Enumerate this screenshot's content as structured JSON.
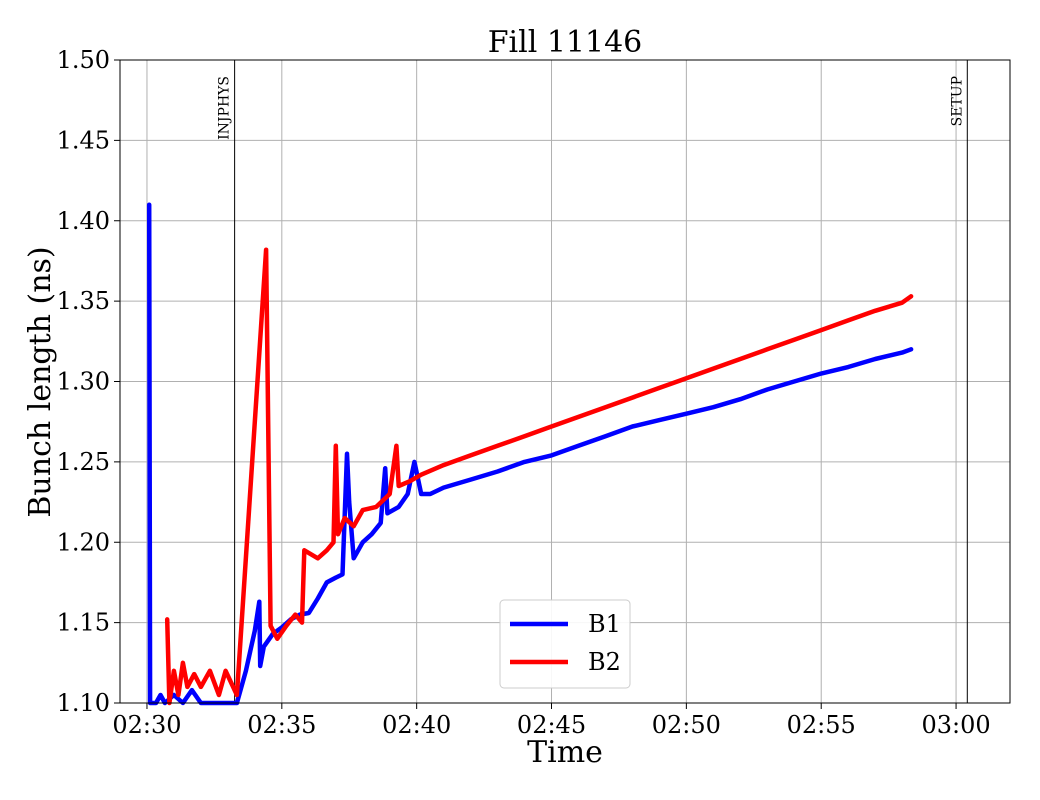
{
  "chart_data": {
    "type": "line",
    "title": "Fill 11146",
    "xlabel": "Time",
    "ylabel": "Bunch length (ns)",
    "x_unit": "time (HH:MM)",
    "xlim": [
      "02:29",
      "03:02"
    ],
    "ylim": [
      1.1,
      1.5
    ],
    "x_ticks": [
      "02:30",
      "02:35",
      "02:40",
      "02:45",
      "02:50",
      "02:55",
      "03:00"
    ],
    "y_ticks": [
      "1.10",
      "1.15",
      "1.20",
      "1.25",
      "1.30",
      "1.35",
      "1.40",
      "1.45",
      "1.50"
    ],
    "grid": true,
    "legend_position": "bottom-center",
    "markers": [
      {
        "label": "INJPHYS",
        "x": "02:33:15"
      },
      {
        "label": "SETUP",
        "x": "03:00:25"
      }
    ],
    "series": [
      {
        "name": "B1",
        "color": "#0000ff",
        "points": [
          [
            "02:30:05",
            1.41
          ],
          [
            "02:30:07",
            1.1
          ],
          [
            "02:30:20",
            1.1
          ],
          [
            "02:30:30",
            1.105
          ],
          [
            "02:30:40",
            1.1
          ],
          [
            "02:31:00",
            1.105
          ],
          [
            "02:31:20",
            1.1
          ],
          [
            "02:31:40",
            1.108
          ],
          [
            "02:32:00",
            1.1
          ],
          [
            "02:33:20",
            1.1
          ],
          [
            "02:33:40",
            1.12
          ],
          [
            "02:34:00",
            1.145
          ],
          [
            "02:34:10",
            1.163
          ],
          [
            "02:34:12",
            1.123
          ],
          [
            "02:34:20",
            1.135
          ],
          [
            "02:34:40",
            1.143
          ],
          [
            "02:35:00",
            1.147
          ],
          [
            "02:35:20",
            1.152
          ],
          [
            "02:35:40",
            1.155
          ],
          [
            "02:36:00",
            1.156
          ],
          [
            "02:36:20",
            1.165
          ],
          [
            "02:36:40",
            1.175
          ],
          [
            "02:37:00",
            1.178
          ],
          [
            "02:37:15",
            1.18
          ],
          [
            "02:37:25",
            1.255
          ],
          [
            "02:37:30",
            1.225
          ],
          [
            "02:37:40",
            1.19
          ],
          [
            "02:38:00",
            1.2
          ],
          [
            "02:38:20",
            1.205
          ],
          [
            "02:38:40",
            1.212
          ],
          [
            "02:38:50",
            1.246
          ],
          [
            "02:38:55",
            1.218
          ],
          [
            "02:39:20",
            1.222
          ],
          [
            "02:39:40",
            1.23
          ],
          [
            "02:39:55",
            1.25
          ],
          [
            "02:40:10",
            1.23
          ],
          [
            "02:40:30",
            1.23
          ],
          [
            "02:41:00",
            1.234
          ],
          [
            "02:42:00",
            1.239
          ],
          [
            "02:43:00",
            1.244
          ],
          [
            "02:44:00",
            1.25
          ],
          [
            "02:45:00",
            1.254
          ],
          [
            "02:46:00",
            1.26
          ],
          [
            "02:47:00",
            1.266
          ],
          [
            "02:48:00",
            1.272
          ],
          [
            "02:49:00",
            1.276
          ],
          [
            "02:50:00",
            1.28
          ],
          [
            "02:51:00",
            1.284
          ],
          [
            "02:52:00",
            1.289
          ],
          [
            "02:53:00",
            1.295
          ],
          [
            "02:54:00",
            1.3
          ],
          [
            "02:55:00",
            1.305
          ],
          [
            "02:56:00",
            1.309
          ],
          [
            "02:57:00",
            1.314
          ],
          [
            "02:58:00",
            1.318
          ],
          [
            "02:58:20",
            1.32
          ]
        ]
      },
      {
        "name": "B2",
        "color": "#ff0000",
        "points": [
          [
            "02:30:45",
            1.152
          ],
          [
            "02:30:50",
            1.1
          ],
          [
            "02:31:00",
            1.12
          ],
          [
            "02:31:10",
            1.105
          ],
          [
            "02:31:20",
            1.125
          ],
          [
            "02:31:30",
            1.11
          ],
          [
            "02:31:45",
            1.118
          ],
          [
            "02:32:00",
            1.11
          ],
          [
            "02:32:20",
            1.12
          ],
          [
            "02:32:40",
            1.105
          ],
          [
            "02:32:55",
            1.12
          ],
          [
            "02:33:20",
            1.105
          ],
          [
            "02:34:25",
            1.382
          ],
          [
            "02:34:35",
            1.148
          ],
          [
            "02:34:50",
            1.14
          ],
          [
            "02:35:10",
            1.148
          ],
          [
            "02:35:30",
            1.155
          ],
          [
            "02:35:45",
            1.15
          ],
          [
            "02:35:50",
            1.195
          ],
          [
            "02:36:20",
            1.19
          ],
          [
            "02:36:40",
            1.195
          ],
          [
            "02:36:55",
            1.2
          ],
          [
            "02:37:00",
            1.26
          ],
          [
            "02:37:05",
            1.205
          ],
          [
            "02:37:20",
            1.215
          ],
          [
            "02:37:40",
            1.21
          ],
          [
            "02:38:00",
            1.22
          ],
          [
            "02:38:30",
            1.222
          ],
          [
            "02:39:00",
            1.23
          ],
          [
            "02:39:15",
            1.26
          ],
          [
            "02:39:20",
            1.235
          ],
          [
            "02:39:45",
            1.238
          ],
          [
            "02:40:10",
            1.242
          ],
          [
            "02:41:00",
            1.248
          ],
          [
            "02:42:00",
            1.254
          ],
          [
            "02:43:00",
            1.26
          ],
          [
            "02:44:00",
            1.266
          ],
          [
            "02:45:00",
            1.272
          ],
          [
            "02:46:00",
            1.278
          ],
          [
            "02:47:00",
            1.284
          ],
          [
            "02:48:00",
            1.29
          ],
          [
            "02:49:00",
            1.296
          ],
          [
            "02:50:00",
            1.302
          ],
          [
            "02:51:00",
            1.308
          ],
          [
            "02:52:00",
            1.314
          ],
          [
            "02:53:00",
            1.32
          ],
          [
            "02:54:00",
            1.326
          ],
          [
            "02:55:00",
            1.332
          ],
          [
            "02:56:00",
            1.338
          ],
          [
            "02:57:00",
            1.344
          ],
          [
            "02:58:00",
            1.349
          ],
          [
            "02:58:20",
            1.353
          ]
        ]
      }
    ]
  }
}
